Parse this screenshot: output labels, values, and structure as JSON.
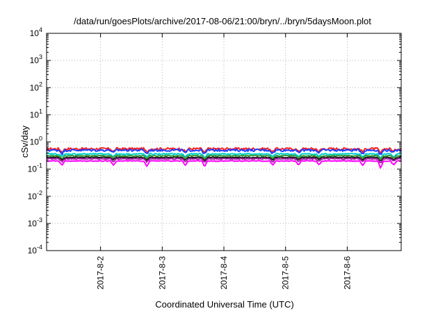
{
  "chart_data": {
    "type": "line",
    "title": "/data/run/goesPlots/archive/2017-08-06/21:00/bryn/../bryn/5daysMoon.plot",
    "xlabel": "Coordinated Universal Time (UTC)",
    "ylabel": "cSv/day",
    "yscale": "log",
    "ylim": [
      0.0001,
      10000
    ],
    "xlim": [
      "2017-08-01T03:00",
      "2017-08-06T21:00"
    ],
    "grid": true,
    "y_ticks": [
      {
        "base": "10",
        "exp": "-4",
        "value": 0.0001
      },
      {
        "base": "10",
        "exp": "-3",
        "value": 0.001
      },
      {
        "base": "10",
        "exp": "-2",
        "value": 0.01
      },
      {
        "base": "10",
        "exp": "-1",
        "value": 0.1
      },
      {
        "base": "10",
        "exp": "0",
        "value": 1
      },
      {
        "base": "10",
        "exp": "1",
        "value": 10
      },
      {
        "base": "10",
        "exp": "2",
        "value": 100
      },
      {
        "base": "10",
        "exp": "3",
        "value": 1000
      },
      {
        "base": "10",
        "exp": "4",
        "value": 10000
      }
    ],
    "x_ticks": [
      {
        "label": "2017-8-2",
        "time": "2017-08-02T00:00"
      },
      {
        "label": "2017-8-3",
        "time": "2017-08-03T00:00"
      },
      {
        "label": "2017-8-4",
        "time": "2017-08-04T00:00"
      },
      {
        "label": "2017-8-5",
        "time": "2017-08-05T00:00"
      },
      {
        "label": "2017-8-6",
        "time": "2017-08-06T00:00"
      }
    ],
    "series": [
      {
        "color": "#ff2020",
        "base": 0.56,
        "noise": 0.1,
        "dip_depth": 0.45
      },
      {
        "color": "#1e3cff",
        "base": 0.5,
        "noise": 0.1,
        "dip_depth": 0.45
      },
      {
        "color": "#00d0d0",
        "base": 0.36,
        "noise": 0.06,
        "dip_depth": 0.4
      },
      {
        "color": "#101010",
        "base": 0.27,
        "noise": 0.04,
        "dip_depth": 0.35
      },
      {
        "color": "#3a9a3a",
        "base": 0.31,
        "noise": 0.04,
        "dip_depth": 0.35
      },
      {
        "color": "#a020a0",
        "base": 0.24,
        "noise": 0.04,
        "dip_depth": 0.4
      },
      {
        "color": "#ff00ff",
        "base": 0.2,
        "noise": 0.04,
        "dip_depth": 0.6
      }
    ],
    "dips": [
      {
        "time": "2017-08-01T09:00",
        "depth": 0.55
      },
      {
        "time": "2017-08-02T05:00",
        "depth": 0.5
      },
      {
        "time": "2017-08-02T18:00",
        "depth": 0.6
      },
      {
        "time": "2017-08-03T09:00",
        "depth": 0.55
      },
      {
        "time": "2017-08-03T16:30",
        "depth": 0.7
      },
      {
        "time": "2017-08-04T19:00",
        "depth": 0.55
      },
      {
        "time": "2017-08-05T05:00",
        "depth": 0.5
      },
      {
        "time": "2017-08-05T13:00",
        "depth": 0.45
      },
      {
        "time": "2017-08-06T06:00",
        "depth": 0.55
      },
      {
        "time": "2017-08-06T13:00",
        "depth": 0.8
      },
      {
        "time": "2017-08-06T18:00",
        "depth": 0.5
      }
    ],
    "colors": {
      "axis": "#000000",
      "grid": "#b0b0b0"
    }
  }
}
